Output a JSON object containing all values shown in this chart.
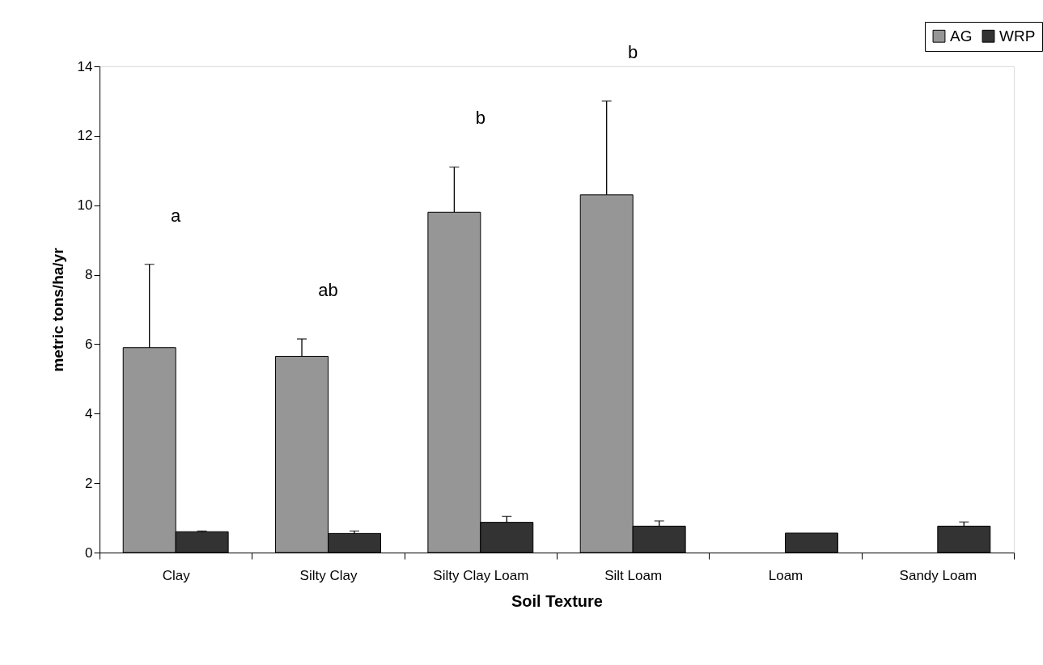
{
  "chart_data": {
    "type": "bar",
    "xlabel": "Soil Texture",
    "ylabel": "metric tons/ha/yr",
    "categories": [
      "Clay",
      "Silty Clay",
      "Silty Clay Loam",
      "Silt Loam",
      "Loam",
      "Sandy Loam"
    ],
    "series": [
      {
        "name": "AG",
        "color": "#969696",
        "values": [
          5.9,
          5.65,
          9.8,
          10.3,
          null,
          null
        ],
        "errors": [
          [
            5.9,
            8.3
          ],
          [
            5.65,
            6.15
          ],
          [
            9.8,
            11.1
          ],
          [
            10.3,
            13.0
          ],
          null,
          null
        ]
      },
      {
        "name": "WRP",
        "color": "#333333",
        "values": [
          0.6,
          0.55,
          0.87,
          0.76,
          0.56,
          0.76
        ],
        "errors": [
          [
            0.6,
            0.62
          ],
          [
            0.55,
            0.62
          ],
          [
            0.87,
            1.04
          ],
          [
            0.76,
            0.91
          ],
          null,
          [
            0.76,
            0.88
          ]
        ]
      }
    ],
    "ylim": [
      0,
      14
    ],
    "yticks": [
      0,
      2,
      4,
      6,
      8,
      10,
      12,
      14
    ],
    "grid": false,
    "legend": "top right",
    "annotations": [
      "a",
      "ab",
      "b",
      "b"
    ]
  }
}
